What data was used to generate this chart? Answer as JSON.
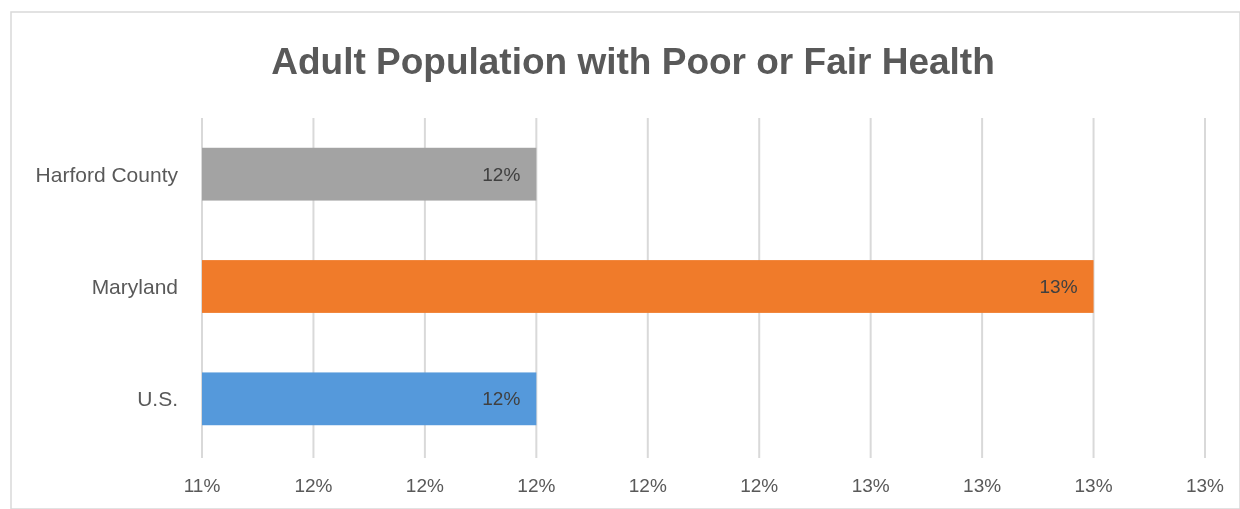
{
  "chart_data": {
    "type": "bar",
    "orientation": "horizontal",
    "title": "Adult Population with Poor or Fair Health",
    "categories": [
      "Harford County",
      "Maryland",
      "U.S."
    ],
    "values": [
      12,
      13,
      12
    ],
    "colors": [
      "#a3a3a3",
      "#f07b2a",
      "#5599db"
    ],
    "value_labels": [
      "12%",
      "13%",
      "12%"
    ],
    "xlim": [
      11.4,
      13.2
    ],
    "xticks": [
      {
        "value": 11.4,
        "label": "11%"
      },
      {
        "value": 11.6,
        "label": "12%"
      },
      {
        "value": 11.8,
        "label": "12%"
      },
      {
        "value": 12.0,
        "label": "12%"
      },
      {
        "value": 12.2,
        "label": "12%"
      },
      {
        "value": 12.4,
        "label": "12%"
      },
      {
        "value": 12.6,
        "label": "13%"
      },
      {
        "value": 12.8,
        "label": "13%"
      },
      {
        "value": 13.0,
        "label": "13%"
      },
      {
        "value": 13.2,
        "label": "13%"
      }
    ],
    "grid": "x"
  }
}
